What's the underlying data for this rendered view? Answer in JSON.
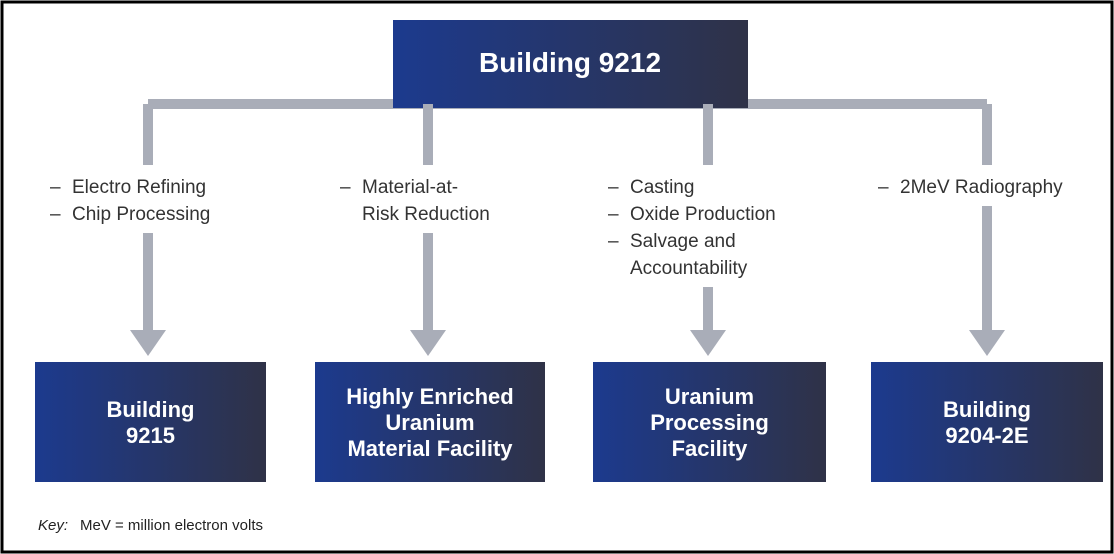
{
  "top": {
    "label": "Building 9212"
  },
  "columns": [
    {
      "items": [
        [
          "Electro Refining"
        ],
        [
          "Chip Processing"
        ]
      ],
      "box": [
        "Building",
        "9215"
      ]
    },
    {
      "items": [
        [
          "Material-at-",
          "Risk Reduction"
        ]
      ],
      "box": [
        "Highly Enriched",
        "Uranium",
        "Material Facility"
      ]
    },
    {
      "items": [
        [
          "Casting"
        ],
        [
          "Oxide Production"
        ],
        [
          "Salvage and",
          "Accountability"
        ]
      ],
      "box": [
        "Uranium",
        "Processing",
        "Facility"
      ]
    },
    {
      "items": [
        [
          "2MeV Radiography"
        ]
      ],
      "box": [
        "Building",
        "9204-2E"
      ]
    }
  ],
  "key": {
    "label": "Key:",
    "text": "MeV = million electron volts"
  }
}
